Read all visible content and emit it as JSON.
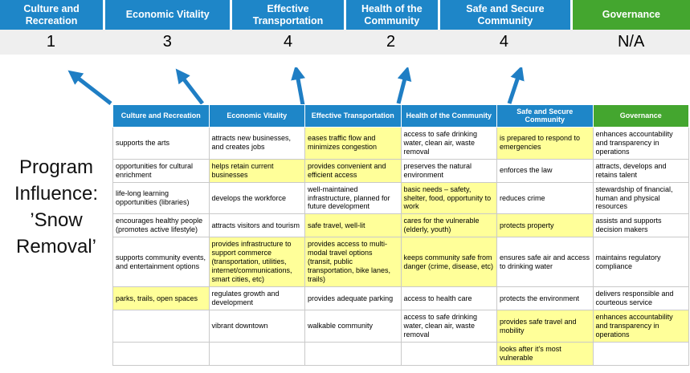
{
  "colors": {
    "header_blue": "#1e86c8",
    "header_green": "#44a62f",
    "highlight_yellow": "#ffff99",
    "arrow_blue": "#1f7ec4",
    "score_band_gray": "#efefef",
    "table_border_gray": "#c9c9c9"
  },
  "scoreboard": {
    "columns": [
      {
        "label": "Culture and Recreation",
        "score": "1",
        "color": "#1e86c8"
      },
      {
        "label": "Economic Vitality",
        "score": "3",
        "color": "#1e86c8"
      },
      {
        "label": "Effective Transportation",
        "score": "4",
        "color": "#1e86c8"
      },
      {
        "label": "Health of the Community",
        "score": "2",
        "color": "#1e86c8"
      },
      {
        "label": "Safe and Secure Community",
        "score": "4",
        "color": "#1e86c8"
      },
      {
        "label": "Governance",
        "score": "N/A",
        "color": "#44a62f"
      }
    ]
  },
  "program_label": "Program Influence: ’Snow Removal’",
  "table": {
    "headers": [
      {
        "label": "Culture and Recreation",
        "color": "#1e86c8"
      },
      {
        "label": "Economic Vitality",
        "color": "#1e86c8"
      },
      {
        "label": "Effective Transportation",
        "color": "#1e86c8"
      },
      {
        "label": "Health of the Community",
        "color": "#1e86c8"
      },
      {
        "label": "Safe and Secure Community",
        "color": "#1e86c8"
      },
      {
        "label": "Governance",
        "color": "#44a62f"
      }
    ],
    "rows": [
      [
        {
          "text": "supports the arts",
          "highlight": false
        },
        {
          "text": "attracts new businesses, and creates jobs",
          "highlight": false
        },
        {
          "text": "eases traffic flow and minimizes congestion",
          "highlight": true
        },
        {
          "text": "access to safe drinking water, clean air, waste removal",
          "highlight": false
        },
        {
          "text": "is prepared to respond to emergencies",
          "highlight": true
        },
        {
          "text": "enhances accountability and transparency in operations",
          "highlight": false
        }
      ],
      [
        {
          "text": "opportunities for cultural enrichment",
          "highlight": false
        },
        {
          "text": "helps retain current businesses",
          "highlight": true
        },
        {
          "text": "provides convenient and efficient access",
          "highlight": true
        },
        {
          "text": "preserves the natural environment",
          "highlight": false
        },
        {
          "text": "enforces the law",
          "highlight": false
        },
        {
          "text": "attracts, develops and retains talent",
          "highlight": false
        }
      ],
      [
        {
          "text": "life-long learning opportunities (libraries)",
          "highlight": false
        },
        {
          "text": "develops the workforce",
          "highlight": false
        },
        {
          "text": "well-maintained infrastructure, planned for future development",
          "highlight": false
        },
        {
          "text": "basic needs – safety, shelter, food, opportunity to work",
          "highlight": true
        },
        {
          "text": "reduces crime",
          "highlight": false
        },
        {
          "text": "stewardship of financial, human and physical resources",
          "highlight": false
        }
      ],
      [
        {
          "text": "encourages healthy people (promotes active lifestyle)",
          "highlight": false
        },
        {
          "text": "attracts visitors and tourism",
          "highlight": false
        },
        {
          "text": "safe travel, well-lit",
          "highlight": true
        },
        {
          "text": "cares for the vulnerable (elderly, youth)",
          "highlight": true
        },
        {
          "text": "protects property",
          "highlight": true
        },
        {
          "text": "assists and supports decision makers",
          "highlight": false
        }
      ],
      [
        {
          "text": "supports community events, and entertainment options",
          "highlight": false
        },
        {
          "text": "provides infrastructure to support commerce (transportation, utilities, internet/communications, smart cities, etc)",
          "highlight": true
        },
        {
          "text": "provides access to multi-modal travel options (transit, public transportation, bike lanes, trails)",
          "highlight": true
        },
        {
          "text": "keeps community safe from danger (crime, disease, etc)",
          "highlight": true
        },
        {
          "text": "ensures safe air and access to drinking water",
          "highlight": false
        },
        {
          "text": "maintains regulatory compliance",
          "highlight": false
        }
      ],
      [
        {
          "text": "parks, trails, open spaces",
          "highlight": true
        },
        {
          "text": "regulates growth and development",
          "highlight": false
        },
        {
          "text": "provides adequate parking",
          "highlight": false
        },
        {
          "text": "access to health care",
          "highlight": false
        },
        {
          "text": "protects the environment",
          "highlight": false
        },
        {
          "text": "delivers responsible and courteous service",
          "highlight": false
        }
      ],
      [
        {
          "text": "",
          "highlight": false
        },
        {
          "text": "vibrant downtown",
          "highlight": false
        },
        {
          "text": "walkable community",
          "highlight": false
        },
        {
          "text": "access to safe drinking water, clean air, waste removal",
          "highlight": false
        },
        {
          "text": "provides safe travel and mobility",
          "highlight": true
        },
        {
          "text": "enhances accountability and transparency in operations",
          "highlight": true
        }
      ],
      [
        {
          "text": "",
          "highlight": false
        },
        {
          "text": "",
          "highlight": false
        },
        {
          "text": "",
          "highlight": false
        },
        {
          "text": "",
          "highlight": false
        },
        {
          "text": "looks after it's most vulnerable",
          "highlight": true
        },
        {
          "text": "",
          "highlight": false
        }
      ]
    ]
  }
}
